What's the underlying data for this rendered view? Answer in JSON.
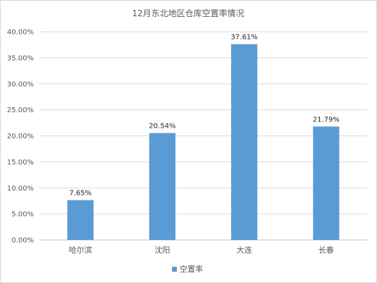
{
  "chart_data": {
    "type": "bar",
    "title": "12月东北地区仓库空置率情况",
    "categories": [
      "哈尔滨",
      "沈阳",
      "大连",
      "长春"
    ],
    "series": [
      {
        "name": "空置率",
        "values": [
          7.65,
          20.54,
          37.61,
          21.79
        ],
        "color": "#5b9bd5"
      }
    ],
    "data_labels": [
      "7.65%",
      "20.54%",
      "37.61%",
      "21.79%"
    ],
    "ylim": [
      0,
      40
    ],
    "yticks": [
      "0.00%",
      "5.00%",
      "10.00%",
      "15.00%",
      "20.00%",
      "25.00%",
      "30.00%",
      "35.00%",
      "40.00%"
    ],
    "grid": true,
    "legend_position": "bottom"
  }
}
